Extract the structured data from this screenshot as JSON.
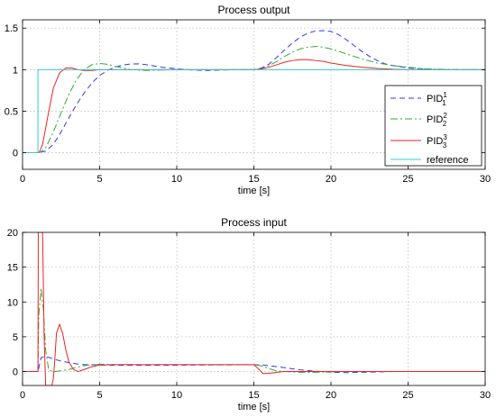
{
  "chart_data": [
    {
      "type": "line",
      "title": "Process output",
      "xlabel": "time [s]",
      "ylabel": "",
      "xlim": [
        0,
        30
      ],
      "ylim": [
        -0.2,
        1.6
      ],
      "xticks": [
        0,
        5,
        10,
        15,
        20,
        25,
        30
      ],
      "yticks": [
        0,
        0.5,
        1,
        1.5
      ],
      "ytick_labels": [
        "0",
        "0.5",
        "1",
        "1.5"
      ],
      "grid": true,
      "legend": "right",
      "series": [
        {
          "name": "PID",
          "sup": "1",
          "sub": "1",
          "color": "#3333ff",
          "dash": "6 4",
          "x": [
            0,
            1,
            1.5,
            2,
            2.5,
            3,
            3.5,
            4,
            4.5,
            5,
            5.5,
            6,
            6.5,
            7,
            7.5,
            8,
            9,
            10,
            11,
            12,
            13,
            14,
            15,
            15.5,
            16,
            16.5,
            17,
            17.5,
            18,
            18.5,
            19,
            19.5,
            20,
            20.5,
            21,
            21.5,
            22,
            22.5,
            23,
            23.5,
            24,
            25,
            26,
            27,
            28,
            30
          ],
          "y": [
            0,
            0,
            0.02,
            0.1,
            0.25,
            0.42,
            0.58,
            0.72,
            0.84,
            0.93,
            0.99,
            1.03,
            1.055,
            1.068,
            1.07,
            1.06,
            1.03,
            1.01,
            0.995,
            0.99,
            0.995,
            1.0,
            1.0,
            1.02,
            1.07,
            1.15,
            1.24,
            1.32,
            1.39,
            1.44,
            1.465,
            1.47,
            1.46,
            1.42,
            1.36,
            1.29,
            1.22,
            1.16,
            1.11,
            1.07,
            1.05,
            1.02,
            1.01,
            1.0,
            1.0,
            1.0
          ]
        },
        {
          "name": "PID",
          "sup": "2",
          "sub": "2",
          "color": "#33aa33",
          "dash": "8 3 2 3",
          "x": [
            0,
            1,
            1.2,
            1.5,
            2,
            2.5,
            3,
            3.5,
            4,
            4.5,
            5,
            5.5,
            6,
            6.5,
            7,
            8,
            9,
            10,
            12,
            14,
            15,
            15.5,
            16,
            16.5,
            17,
            17.5,
            18,
            18.5,
            19,
            19.5,
            20,
            21,
            22,
            23,
            24,
            25,
            26,
            28,
            30
          ],
          "y": [
            0,
            0,
            0.01,
            0.06,
            0.25,
            0.48,
            0.7,
            0.88,
            1.0,
            1.06,
            1.075,
            1.065,
            1.04,
            1.02,
            1.0,
            0.99,
            0.995,
            1.0,
            1.0,
            1.0,
            1.0,
            1.01,
            1.05,
            1.1,
            1.16,
            1.21,
            1.25,
            1.27,
            1.28,
            1.27,
            1.25,
            1.19,
            1.13,
            1.08,
            1.05,
            1.03,
            1.01,
            1.0,
            1.0
          ]
        },
        {
          "name": "PID",
          "sup": "3",
          "sub": "3",
          "color": "#ee2222",
          "dash": "",
          "x": [
            0,
            1,
            1.1,
            1.3,
            1.6,
            2,
            2.4,
            2.8,
            3.2,
            3.6,
            4,
            4.5,
            5,
            6,
            8,
            10,
            12,
            14,
            15,
            15.5,
            16,
            16.5,
            17,
            17.5,
            18,
            18.5,
            19,
            19.5,
            20,
            21,
            22,
            23,
            24,
            25,
            26,
            28,
            30
          ],
          "y": [
            0,
            0,
            0.01,
            0.1,
            0.4,
            0.78,
            0.96,
            1.02,
            1.02,
            1.0,
            0.99,
            0.99,
            1.0,
            1.0,
            1.0,
            1.0,
            1.0,
            1.0,
            1.0,
            1.01,
            1.03,
            1.06,
            1.09,
            1.11,
            1.12,
            1.12,
            1.11,
            1.1,
            1.08,
            1.05,
            1.03,
            1.015,
            1.005,
            1.0,
            1.0,
            1.0,
            1.0
          ]
        },
        {
          "name": "reference",
          "color": "#33cccc",
          "dash": "",
          "x": [
            0,
            1,
            1,
            30
          ],
          "y": [
            0,
            0,
            1,
            1
          ]
        }
      ]
    },
    {
      "type": "line",
      "title": "Process input",
      "xlabel": "time [s]",
      "ylabel": "",
      "xlim": [
        0,
        30
      ],
      "ylim": [
        -2,
        20
      ],
      "xticks": [
        0,
        5,
        10,
        15,
        20,
        25,
        30
      ],
      "yticks": [
        0,
        5,
        10,
        15,
        20
      ],
      "ytick_labels": [
        "0",
        "5",
        "10",
        "15",
        "20"
      ],
      "grid": true,
      "legend": "none",
      "series": [
        {
          "name": "PID1",
          "color": "#3333ff",
          "dash": "6 4",
          "x": [
            0,
            1,
            1.2,
            1.5,
            2,
            2.5,
            3,
            3.5,
            4,
            5,
            6,
            8,
            10,
            12,
            15,
            15.5,
            16,
            16.5,
            17,
            17.5,
            18,
            19,
            20,
            21,
            22,
            24,
            30
          ],
          "y": [
            0,
            0,
            2.0,
            2.2,
            1.8,
            1.5,
            1.3,
            1.1,
            1.0,
            0.95,
            0.9,
            0.9,
            0.92,
            0.95,
            0.98,
            0.95,
            0.85,
            0.7,
            0.55,
            0.4,
            0.25,
            0.05,
            -0.1,
            -0.15,
            -0.1,
            0.0,
            0.0
          ]
        },
        {
          "name": "PID2",
          "color": "#33aa33",
          "dash": "8 3 2 3",
          "x": [
            0,
            1,
            1.05,
            1.2,
            1.35,
            1.5,
            1.7,
            2,
            2.5,
            3,
            3.5,
            4,
            4.5,
            5,
            6,
            8,
            10,
            12,
            15,
            15.5,
            16,
            16.5,
            17,
            18,
            19,
            20,
            21,
            22,
            24,
            30
          ],
          "y": [
            0,
            0,
            8,
            12,
            9,
            3,
            0.2,
            0.0,
            0.1,
            0.3,
            0.6,
            0.85,
            1.0,
            1.05,
            1.0,
            0.98,
            0.99,
            1.0,
            1.0,
            0.8,
            0.4,
            0.1,
            0.0,
            -0.1,
            -0.1,
            -0.05,
            0.0,
            0.0,
            0.0,
            0.0
          ]
        },
        {
          "name": "PID3",
          "color": "#ee2222",
          "dash": "",
          "x": [
            0,
            1,
            1.02,
            1.1,
            1.3,
            1.4,
            1.5,
            1.7,
            1.9,
            2.0,
            2.1,
            2.2,
            2.4,
            2.6,
            2.8,
            3.0,
            3.3,
            3.6,
            4.0,
            4.5,
            5,
            6,
            8,
            10,
            12,
            15,
            15.3,
            15.6,
            16,
            16.5,
            17,
            18,
            20,
            24,
            30
          ],
          "y": [
            0,
            0,
            20,
            20,
            20,
            5,
            -2,
            -2,
            -2,
            -1,
            2,
            5.5,
            6.8,
            5.5,
            3.2,
            1.4,
            0.3,
            0.0,
            0.3,
            0.7,
            0.95,
            1.0,
            1.0,
            1.0,
            1.0,
            1.0,
            0.4,
            -0.3,
            -0.25,
            -0.1,
            0.0,
            0.0,
            0.0,
            0.0,
            0.0
          ]
        }
      ]
    }
  ]
}
